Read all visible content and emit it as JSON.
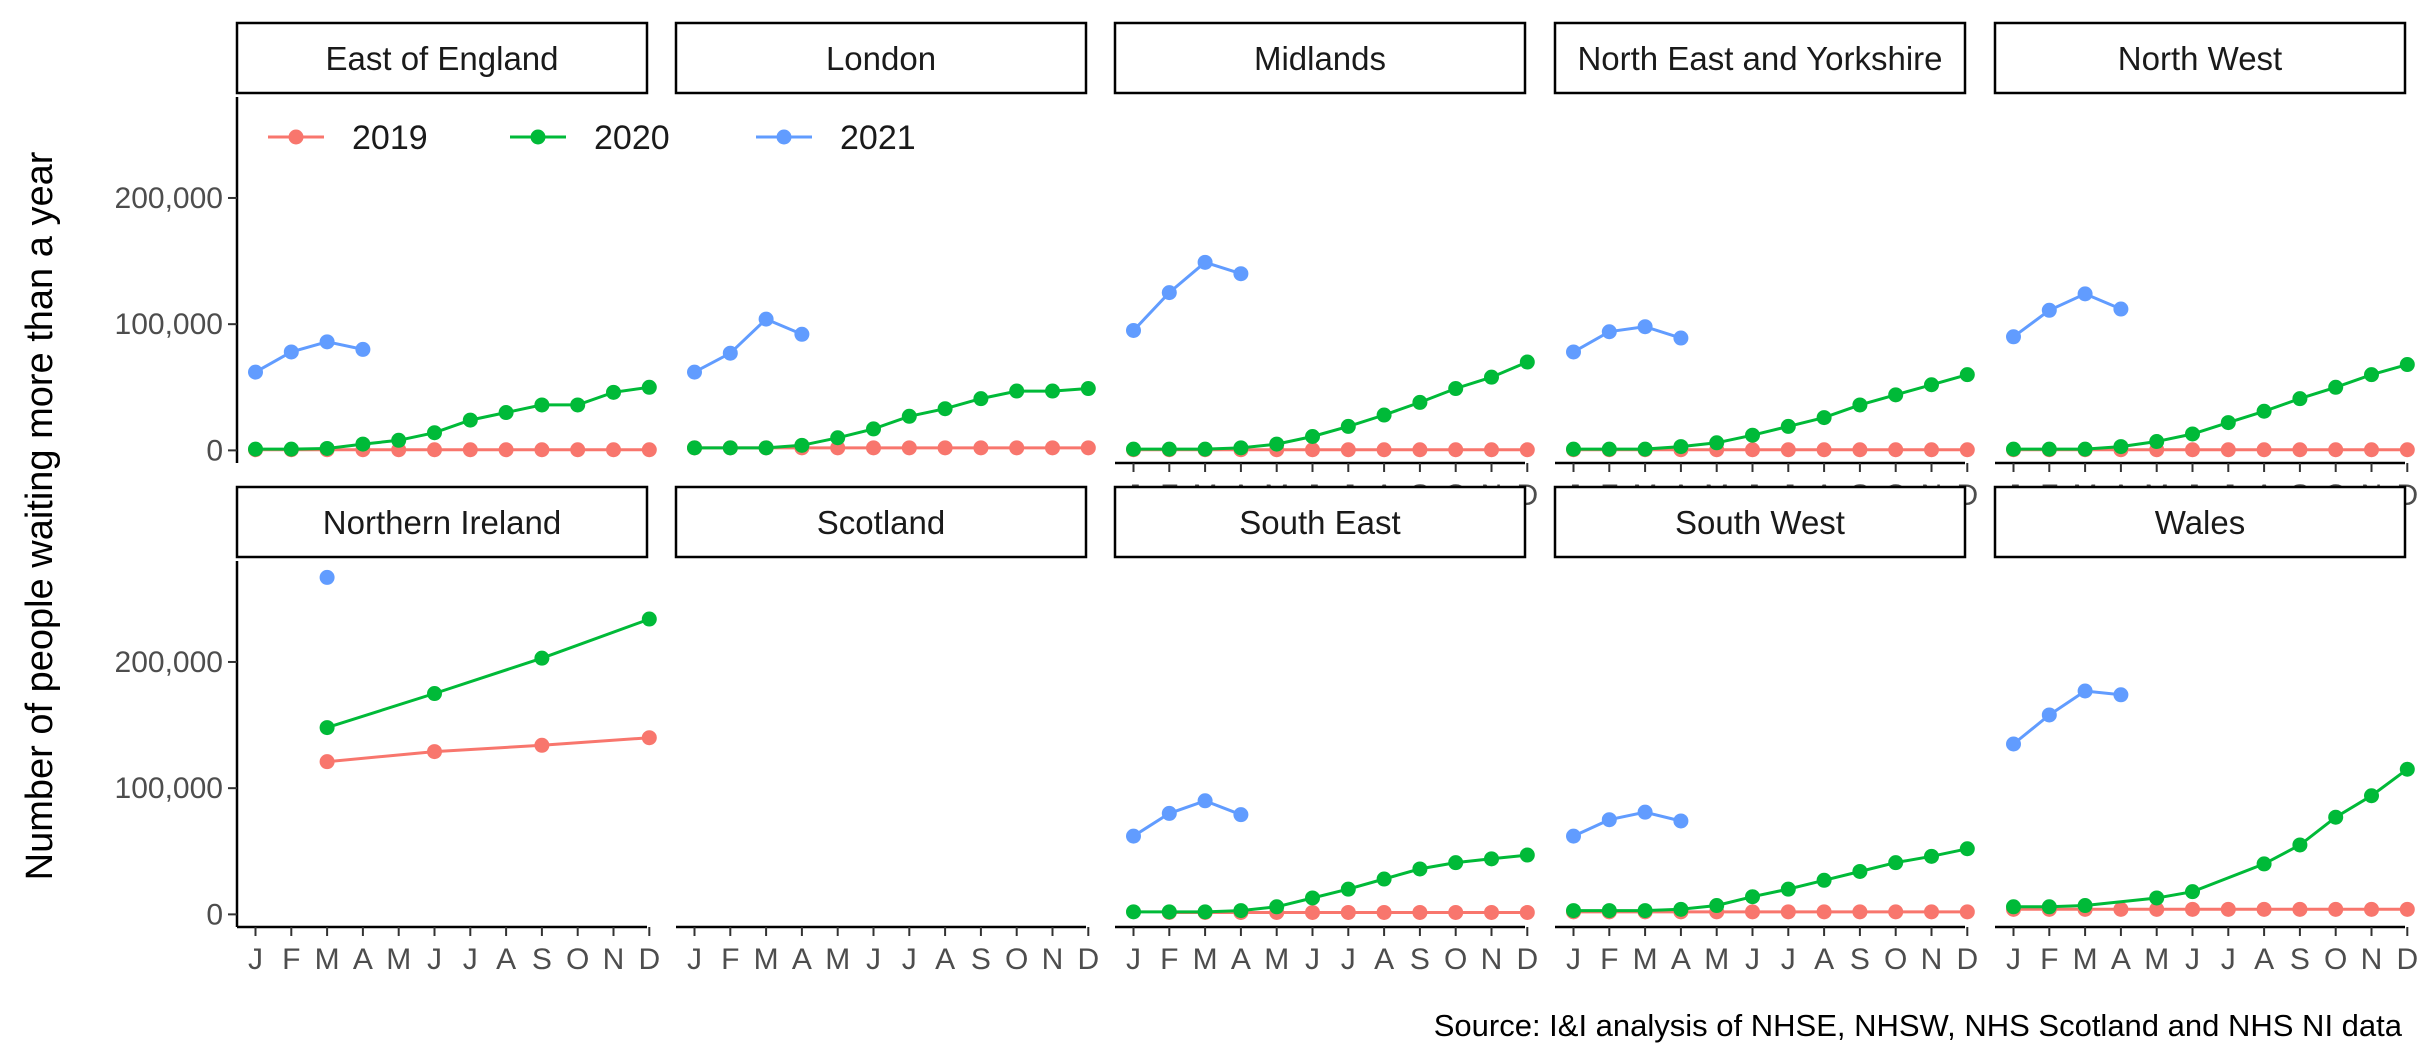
{
  "chart_data": {
    "type": "line",
    "ylabel": "Number of people waiting more than a year",
    "caption": "Source: I&I analysis of NHSE, NHSW, NHS Scotland and NHS NI data",
    "x_months": [
      "J",
      "F",
      "M",
      "A",
      "M",
      "J",
      "J",
      "A",
      "S",
      "O",
      "N",
      "D"
    ],
    "ylim": [
      -10000,
      280000
    ],
    "y_ticks": [
      0,
      100000,
      200000
    ],
    "y_tick_labels": [
      "0",
      "100,000",
      "200,000"
    ],
    "grid": false,
    "legend_position": "top-left",
    "series_names": [
      "2019",
      "2020",
      "2021"
    ],
    "colors": {
      "2019": "#F8766D",
      "2020": "#00BA38",
      "2021": "#619CFF"
    },
    "panels": [
      {
        "name": "East of England",
        "series": {
          "2019": [
            {
              "m": 1,
              "v": 500
            },
            {
              "m": 2,
              "v": 500
            },
            {
              "m": 3,
              "v": 500
            },
            {
              "m": 4,
              "v": 500
            },
            {
              "m": 5,
              "v": 500
            },
            {
              "m": 6,
              "v": 500
            },
            {
              "m": 7,
              "v": 500
            },
            {
              "m": 8,
              "v": 500
            },
            {
              "m": 9,
              "v": 500
            },
            {
              "m": 10,
              "v": 500
            },
            {
              "m": 11,
              "v": 500
            },
            {
              "m": 12,
              "v": 500
            }
          ],
          "2020": [
            {
              "m": 1,
              "v": 1000
            },
            {
              "m": 2,
              "v": 1000
            },
            {
              "m": 3,
              "v": 1500
            },
            {
              "m": 4,
              "v": 5000
            },
            {
              "m": 5,
              "v": 8000
            },
            {
              "m": 6,
              "v": 14000
            },
            {
              "m": 7,
              "v": 24000
            },
            {
              "m": 8,
              "v": 30000
            },
            {
              "m": 9,
              "v": 36000
            },
            {
              "m": 10,
              "v": 36000
            },
            {
              "m": 11,
              "v": 46000
            },
            {
              "m": 12,
              "v": 50000
            }
          ],
          "2021": [
            {
              "m": 1,
              "v": 62000
            },
            {
              "m": 2,
              "v": 78000
            },
            {
              "m": 3,
              "v": 86000
            },
            {
              "m": 4,
              "v": 80000
            }
          ]
        }
      },
      {
        "name": "London",
        "series": {
          "2019": [
            {
              "m": 1,
              "v": 2000
            },
            {
              "m": 2,
              "v": 2000
            },
            {
              "m": 3,
              "v": 2000
            },
            {
              "m": 4,
              "v": 2000
            },
            {
              "m": 5,
              "v": 2000
            },
            {
              "m": 6,
              "v": 2000
            },
            {
              "m": 7,
              "v": 2000
            },
            {
              "m": 8,
              "v": 2000
            },
            {
              "m": 9,
              "v": 2000
            },
            {
              "m": 10,
              "v": 2000
            },
            {
              "m": 11,
              "v": 2000
            },
            {
              "m": 12,
              "v": 2000
            }
          ],
          "2020": [
            {
              "m": 1,
              "v": 2000
            },
            {
              "m": 2,
              "v": 2000
            },
            {
              "m": 3,
              "v": 2000
            },
            {
              "m": 4,
              "v": 4000
            },
            {
              "m": 5,
              "v": 10000
            },
            {
              "m": 6,
              "v": 17000
            },
            {
              "m": 7,
              "v": 27000
            },
            {
              "m": 8,
              "v": 33000
            },
            {
              "m": 9,
              "v": 41000
            },
            {
              "m": 10,
              "v": 47000
            },
            {
              "m": 11,
              "v": 47000
            },
            {
              "m": 12,
              "v": 49000
            }
          ],
          "2021": [
            {
              "m": 1,
              "v": 62000
            },
            {
              "m": 2,
              "v": 77000
            },
            {
              "m": 3,
              "v": 104000
            },
            {
              "m": 4,
              "v": 92000
            }
          ]
        }
      },
      {
        "name": "Midlands",
        "series": {
          "2019": [
            {
              "m": 1,
              "v": 500
            },
            {
              "m": 2,
              "v": 500
            },
            {
              "m": 3,
              "v": 500
            },
            {
              "m": 4,
              "v": 500
            },
            {
              "m": 5,
              "v": 500
            },
            {
              "m": 6,
              "v": 500
            },
            {
              "m": 7,
              "v": 500
            },
            {
              "m": 8,
              "v": 500
            },
            {
              "m": 9,
              "v": 500
            },
            {
              "m": 10,
              "v": 500
            },
            {
              "m": 11,
              "v": 500
            },
            {
              "m": 12,
              "v": 500
            }
          ],
          "2020": [
            {
              "m": 1,
              "v": 1000
            },
            {
              "m": 2,
              "v": 1000
            },
            {
              "m": 3,
              "v": 1000
            },
            {
              "m": 4,
              "v": 2000
            },
            {
              "m": 5,
              "v": 5000
            },
            {
              "m": 6,
              "v": 11000
            },
            {
              "m": 7,
              "v": 19000
            },
            {
              "m": 8,
              "v": 28000
            },
            {
              "m": 9,
              "v": 38000
            },
            {
              "m": 10,
              "v": 49000
            },
            {
              "m": 11,
              "v": 58000
            },
            {
              "m": 12,
              "v": 70000
            }
          ],
          "2021": [
            {
              "m": 1,
              "v": 95000
            },
            {
              "m": 2,
              "v": 125000
            },
            {
              "m": 3,
              "v": 149000
            },
            {
              "m": 4,
              "v": 140000
            }
          ]
        }
      },
      {
        "name": "North East and Yorkshire",
        "series": {
          "2019": [
            {
              "m": 1,
              "v": 500
            },
            {
              "m": 2,
              "v": 500
            },
            {
              "m": 3,
              "v": 500
            },
            {
              "m": 4,
              "v": 500
            },
            {
              "m": 5,
              "v": 500
            },
            {
              "m": 6,
              "v": 500
            },
            {
              "m": 7,
              "v": 500
            },
            {
              "m": 8,
              "v": 500
            },
            {
              "m": 9,
              "v": 500
            },
            {
              "m": 10,
              "v": 500
            },
            {
              "m": 11,
              "v": 500
            },
            {
              "m": 12,
              "v": 500
            }
          ],
          "2020": [
            {
              "m": 1,
              "v": 1000
            },
            {
              "m": 2,
              "v": 1000
            },
            {
              "m": 3,
              "v": 1000
            },
            {
              "m": 4,
              "v": 3000
            },
            {
              "m": 5,
              "v": 6000
            },
            {
              "m": 6,
              "v": 12000
            },
            {
              "m": 7,
              "v": 19000
            },
            {
              "m": 8,
              "v": 26000
            },
            {
              "m": 9,
              "v": 36000
            },
            {
              "m": 10,
              "v": 44000
            },
            {
              "m": 11,
              "v": 52000
            },
            {
              "m": 12,
              "v": 60000
            }
          ],
          "2021": [
            {
              "m": 1,
              "v": 78000
            },
            {
              "m": 2,
              "v": 94000
            },
            {
              "m": 3,
              "v": 98000
            },
            {
              "m": 4,
              "v": 89000
            }
          ]
        }
      },
      {
        "name": "North West",
        "series": {
          "2019": [
            {
              "m": 1,
              "v": 500
            },
            {
              "m": 2,
              "v": 500
            },
            {
              "m": 3,
              "v": 500
            },
            {
              "m": 4,
              "v": 500
            },
            {
              "m": 5,
              "v": 500
            },
            {
              "m": 6,
              "v": 500
            },
            {
              "m": 7,
              "v": 500
            },
            {
              "m": 8,
              "v": 500
            },
            {
              "m": 9,
              "v": 500
            },
            {
              "m": 10,
              "v": 500
            },
            {
              "m": 11,
              "v": 500
            },
            {
              "m": 12,
              "v": 500
            }
          ],
          "2020": [
            {
              "m": 1,
              "v": 1000
            },
            {
              "m": 2,
              "v": 1000
            },
            {
              "m": 3,
              "v": 1000
            },
            {
              "m": 4,
              "v": 3000
            },
            {
              "m": 5,
              "v": 7000
            },
            {
              "m": 6,
              "v": 13000
            },
            {
              "m": 7,
              "v": 22000
            },
            {
              "m": 8,
              "v": 31000
            },
            {
              "m": 9,
              "v": 41000
            },
            {
              "m": 10,
              "v": 50000
            },
            {
              "m": 11,
              "v": 60000
            },
            {
              "m": 12,
              "v": 68000
            }
          ],
          "2021": [
            {
              "m": 1,
              "v": 90000
            },
            {
              "m": 2,
              "v": 111000
            },
            {
              "m": 3,
              "v": 124000
            },
            {
              "m": 4,
              "v": 112000
            }
          ]
        }
      },
      {
        "name": "Northern Ireland",
        "series": {
          "2019": [
            {
              "m": 3,
              "v": 121000
            },
            {
              "m": 6,
              "v": 129000
            },
            {
              "m": 9,
              "v": 134000
            },
            {
              "m": 12,
              "v": 140000
            }
          ],
          "2020": [
            {
              "m": 3,
              "v": 148000
            },
            {
              "m": 6,
              "v": 175000
            },
            {
              "m": 9,
              "v": 203000
            },
            {
              "m": 12,
              "v": 234000
            }
          ],
          "2021": [
            {
              "m": 3,
              "v": 267000
            }
          ]
        }
      },
      {
        "name": "Scotland",
        "series": {
          "2019": [],
          "2020": [],
          "2021": []
        }
      },
      {
        "name": "South East",
        "series": {
          "2019": [
            {
              "m": 2,
              "v": 1500
            },
            {
              "m": 3,
              "v": 1500
            },
            {
              "m": 4,
              "v": 1500
            },
            {
              "m": 5,
              "v": 1500
            },
            {
              "m": 6,
              "v": 1500
            },
            {
              "m": 7,
              "v": 1500
            },
            {
              "m": 8,
              "v": 1500
            },
            {
              "m": 9,
              "v": 1500
            },
            {
              "m": 10,
              "v": 1500
            },
            {
              "m": 11,
              "v": 1500
            },
            {
              "m": 12,
              "v": 1500
            }
          ],
          "2020": [
            {
              "m": 1,
              "v": 2000
            },
            {
              "m": 2,
              "v": 2000
            },
            {
              "m": 3,
              "v": 2000
            },
            {
              "m": 4,
              "v": 3000
            },
            {
              "m": 5,
              "v": 6000
            },
            {
              "m": 6,
              "v": 13000
            },
            {
              "m": 7,
              "v": 20000
            },
            {
              "m": 8,
              "v": 28000
            },
            {
              "m": 9,
              "v": 36000
            },
            {
              "m": 10,
              "v": 41000
            },
            {
              "m": 11,
              "v": 44000
            },
            {
              "m": 12,
              "v": 47000
            }
          ],
          "2021": [
            {
              "m": 1,
              "v": 62000
            },
            {
              "m": 2,
              "v": 80000
            },
            {
              "m": 3,
              "v": 90000
            },
            {
              "m": 4,
              "v": 79000
            }
          ]
        }
      },
      {
        "name": "South West",
        "series": {
          "2019": [
            {
              "m": 1,
              "v": 2000
            },
            {
              "m": 2,
              "v": 2000
            },
            {
              "m": 3,
              "v": 2000
            },
            {
              "m": 4,
              "v": 2000
            },
            {
              "m": 5,
              "v": 2000
            },
            {
              "m": 6,
              "v": 2000
            },
            {
              "m": 7,
              "v": 2000
            },
            {
              "m": 8,
              "v": 2000
            },
            {
              "m": 9,
              "v": 2000
            },
            {
              "m": 10,
              "v": 2000
            },
            {
              "m": 11,
              "v": 2000
            },
            {
              "m": 12,
              "v": 2000
            }
          ],
          "2020": [
            {
              "m": 1,
              "v": 3000
            },
            {
              "m": 2,
              "v": 3000
            },
            {
              "m": 3,
              "v": 3000
            },
            {
              "m": 4,
              "v": 4000
            },
            {
              "m": 5,
              "v": 7000
            },
            {
              "m": 6,
              "v": 14000
            },
            {
              "m": 7,
              "v": 20000
            },
            {
              "m": 8,
              "v": 27000
            },
            {
              "m": 9,
              "v": 34000
            },
            {
              "m": 10,
              "v": 41000
            },
            {
              "m": 11,
              "v": 46000
            },
            {
              "m": 12,
              "v": 52000
            }
          ],
          "2021": [
            {
              "m": 1,
              "v": 62000
            },
            {
              "m": 2,
              "v": 75000
            },
            {
              "m": 3,
              "v": 81000
            },
            {
              "m": 4,
              "v": 74000
            }
          ]
        }
      },
      {
        "name": "Wales",
        "series": {
          "2019": [
            {
              "m": 1,
              "v": 4000
            },
            {
              "m": 2,
              "v": 4000
            },
            {
              "m": 3,
              "v": 4000
            },
            {
              "m": 4,
              "v": 4000
            },
            {
              "m": 5,
              "v": 4000
            },
            {
              "m": 6,
              "v": 4000
            },
            {
              "m": 7,
              "v": 4000
            },
            {
              "m": 8,
              "v": 4000
            },
            {
              "m": 9,
              "v": 4000
            },
            {
              "m": 10,
              "v": 4000
            },
            {
              "m": 11,
              "v": 4000
            },
            {
              "m": 12,
              "v": 4000
            }
          ],
          "2020": [
            {
              "m": 1,
              "v": 6000
            },
            {
              "m": 2,
              "v": 6000
            },
            {
              "m": 3,
              "v": 7000
            },
            {
              "m": 5,
              "v": 13000
            },
            {
              "m": 6,
              "v": 18000
            },
            {
              "m": 8,
              "v": 40000
            },
            {
              "m": 9,
              "v": 55000
            },
            {
              "m": 10,
              "v": 77000
            },
            {
              "m": 11,
              "v": 94000
            },
            {
              "m": 12,
              "v": 115000
            }
          ],
          "2021": [
            {
              "m": 1,
              "v": 135000
            },
            {
              "m": 2,
              "v": 158000
            },
            {
              "m": 3,
              "v": 177000
            },
            {
              "m": 4,
              "v": 174000
            }
          ]
        }
      }
    ]
  }
}
